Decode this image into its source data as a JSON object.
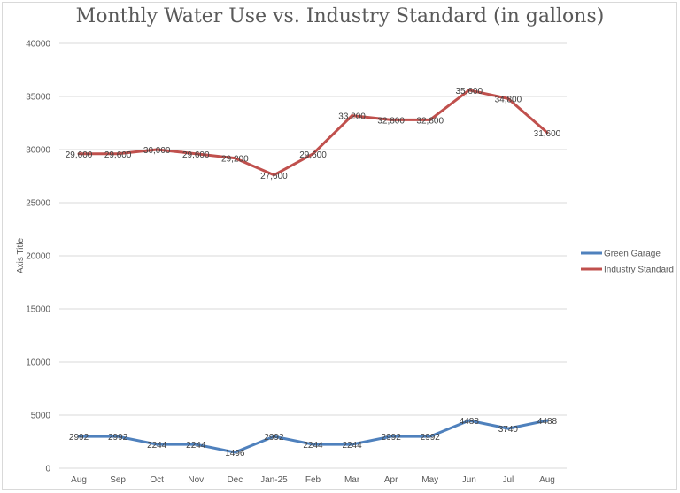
{
  "chart_data": {
    "type": "line",
    "title": "Monthly Water Use vs. Industry Standard (in gallons)",
    "xlabel": "",
    "ylabel": "Axis Title",
    "ylim": [
      0,
      40000
    ],
    "yticks": [
      0,
      5000,
      10000,
      15000,
      20000,
      25000,
      30000,
      35000,
      40000
    ],
    "ytick_labels": [
      "0",
      "5000",
      "10000",
      "15000",
      "20000",
      "25000",
      "30000",
      "35000",
      "40000"
    ],
    "grid": true,
    "legend_position": "right",
    "categories": [
      "Aug",
      "Sep",
      "Oct",
      "Nov",
      "Dec",
      "Jan-25",
      "Feb",
      "Mar",
      "Apr",
      "May",
      "Jun",
      "Jul",
      "Aug"
    ],
    "series": [
      {
        "name": "Green Garage",
        "color": "#4f81bd",
        "values": [
          2992,
          2992,
          2244,
          2244,
          1496,
          2992,
          2244,
          2244,
          2992,
          2992,
          4488,
          3740,
          4488
        ],
        "labels": [
          "2992",
          "2992",
          "2244",
          "2244",
          "1496",
          "2992",
          "2244",
          "2244",
          "2992",
          "2992",
          "4488",
          "3740",
          "4488"
        ]
      },
      {
        "name": "Industry Standard",
        "color": "#c0504d",
        "values": [
          29600,
          29600,
          30000,
          29600,
          29200,
          27600,
          29600,
          33200,
          32800,
          32800,
          35600,
          34800,
          31600
        ],
        "labels": [
          "29,600",
          "29,600",
          "30,000",
          "29,600",
          "29,200",
          "27,600",
          "29,600",
          "33,200",
          "32,800",
          "32,800",
          "35,600",
          "34,800",
          "31,600"
        ]
      }
    ]
  }
}
